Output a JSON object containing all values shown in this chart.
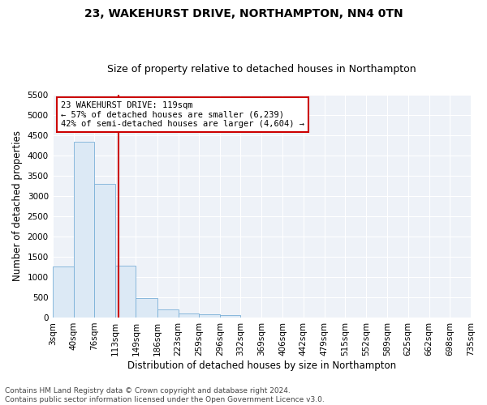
{
  "title": "23, WAKEHURST DRIVE, NORTHAMPTON, NN4 0TN",
  "subtitle": "Size of property relative to detached houses in Northampton",
  "xlabel": "Distribution of detached houses by size in Northampton",
  "ylabel": "Number of detached properties",
  "bin_edges": [
    3,
    40,
    76,
    113,
    149,
    186,
    223,
    259,
    296,
    332,
    369,
    406,
    442,
    479,
    515,
    552,
    589,
    625,
    662,
    698,
    735
  ],
  "bin_counts": [
    1260,
    4330,
    3290,
    1270,
    480,
    190,
    90,
    70,
    50,
    0,
    0,
    0,
    0,
    0,
    0,
    0,
    0,
    0,
    0,
    0
  ],
  "bar_color": "#dce9f5",
  "bar_edge_color": "#7ab0d8",
  "property_line_x": 119,
  "annotation_line1": "23 WAKEHURST DRIVE: 119sqm",
  "annotation_line2": "← 57% of detached houses are smaller (6,239)",
  "annotation_line3": "42% of semi-detached houses are larger (4,604) →",
  "annotation_box_color": "#ffffff",
  "annotation_box_edge": "#cc0000",
  "property_line_color": "#cc0000",
  "ylim": [
    0,
    5500
  ],
  "yticks": [
    0,
    500,
    1000,
    1500,
    2000,
    2500,
    3000,
    3500,
    4000,
    4500,
    5000,
    5500
  ],
  "tick_labels": [
    "3sqm",
    "40sqm",
    "76sqm",
    "113sqm",
    "149sqm",
    "186sqm",
    "223sqm",
    "259sqm",
    "296sqm",
    "332sqm",
    "369sqm",
    "406sqm",
    "442sqm",
    "479sqm",
    "515sqm",
    "552sqm",
    "589sqm",
    "625sqm",
    "662sqm",
    "698sqm",
    "735sqm"
  ],
  "footer_text": "Contains HM Land Registry data © Crown copyright and database right 2024.\nContains public sector information licensed under the Open Government Licence v3.0.",
  "background_color": "#ffffff",
  "plot_bg_color": "#eef2f8",
  "grid_color": "#ffffff",
  "title_fontsize": 10,
  "subtitle_fontsize": 9,
  "xlabel_fontsize": 8.5,
  "ylabel_fontsize": 8.5,
  "tick_fontsize": 7.5,
  "annotation_fontsize": 7.5,
  "footer_fontsize": 6.5
}
